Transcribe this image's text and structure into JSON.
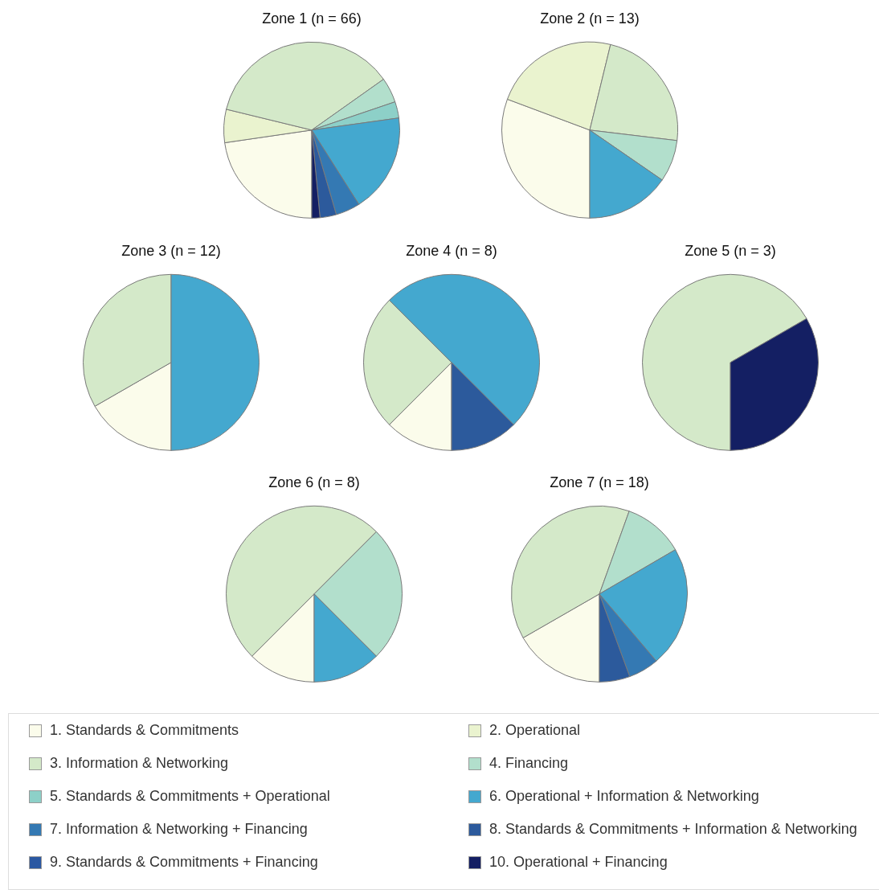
{
  "chart_data": [
    {
      "type": "pie",
      "title": "Zone 1 (n = 66)",
      "categories": [
        "1. Standards & Commitments",
        "2. Operational",
        "3. Information & Networking",
        "4. Financing",
        "5. Standards & Commitments + Operational",
        "6. Operational + Information & Networking",
        "7. Information & Networking + Financing",
        "8. Standards & Commitments + Information & Networking",
        "9. Standards & Commitments + Financing",
        "10. Operational + Financing"
      ],
      "values": [
        22.7,
        6.1,
        36.4,
        4.6,
        3.0,
        18.2,
        4.5,
        3.0,
        0,
        1.5
      ],
      "colors": [
        "#fbfceb",
        "#eaf3cf",
        "#d4e9c9",
        "#b2dfcc",
        "#8dd0c8",
        "#44a8cf",
        "#3479b3",
        "#2c5a9c",
        "#2b58a2",
        "#141f63"
      ],
      "legend": "bottom"
    },
    {
      "type": "pie",
      "title": "Zone 2 (n = 13)",
      "categories": [
        null,
        null,
        null,
        null,
        null
      ],
      "values": [
        30.7,
        23.1,
        23.1,
        7.7,
        15.4
      ],
      "colors": [
        "#fbfceb",
        "#eaf3cf",
        "#d4e9c9",
        "#b2dfcc",
        "#44a8cf"
      ]
    },
    {
      "type": "pie",
      "title": "Zone 3 (n = 12)",
      "categories": [
        null,
        null,
        null
      ],
      "values": [
        16.7,
        33.3,
        50
      ],
      "colors": [
        "#fbfceb",
        "#d4e9c9",
        "#44a8cf"
      ]
    },
    {
      "type": "pie",
      "title": "Zone 4 (n = 8)",
      "categories": [
        null,
        null,
        null,
        null
      ],
      "values": [
        12.5,
        25,
        50,
        12.5
      ],
      "colors": [
        "#fbfceb",
        "#d4e9c9",
        "#44a8cf",
        "#2c5a9c"
      ]
    },
    {
      "type": "pie",
      "title": "Zone 5 (n = 3)",
      "categories": [
        null,
        null
      ],
      "values": [
        66.7,
        33.3
      ],
      "colors": [
        "#d4e9c9",
        "#141f63"
      ]
    },
    {
      "type": "pie",
      "title": "Zone 6 (n = 8)",
      "categories": [
        null,
        null,
        null,
        null
      ],
      "values": [
        12.5,
        50,
        25,
        12.5
      ],
      "colors": [
        "#fbfceb",
        "#d4e9c9",
        "#b2dfcc",
        "#44a8cf"
      ]
    },
    {
      "type": "pie",
      "title": "Zone 7 (n = 18)",
      "categories": [
        null,
        null,
        null,
        null,
        null,
        null
      ],
      "values": [
        16.7,
        38.8,
        11.1,
        22.2,
        5.6,
        5.6
      ],
      "colors": [
        "#fbfceb",
        "#d4e9c9",
        "#b2dfcc",
        "#44a8cf",
        "#3479b3",
        "#2c5a9c"
      ]
    }
  ]
}
